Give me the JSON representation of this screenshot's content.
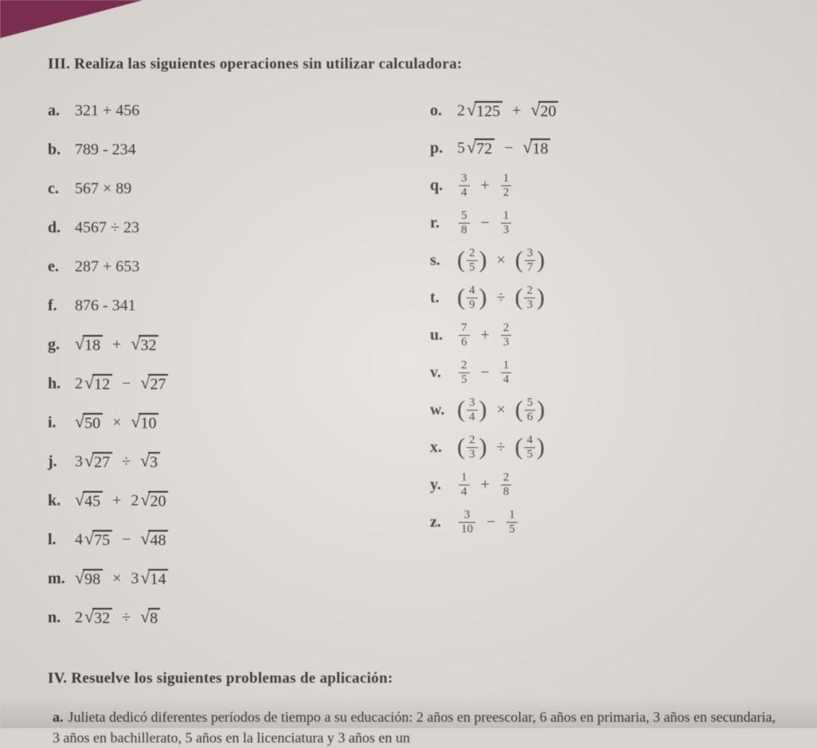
{
  "colors": {
    "background": "#d8d4d1",
    "page": "#e4e0dc",
    "text": "#3a3632",
    "corner": "#7a2d4f"
  },
  "section3": {
    "instruction": "III. Realiza las siguientes operaciones sin utilizar calculadora:"
  },
  "leftColumn": [
    {
      "label": "a.",
      "type": "plain",
      "text": "321 + 456"
    },
    {
      "label": "b.",
      "type": "plain",
      "text": "789 - 234"
    },
    {
      "label": "c.",
      "type": "plain",
      "text": "567 × 89"
    },
    {
      "label": "d.",
      "type": "plain",
      "text": "4567 ÷ 23"
    },
    {
      "label": "e.",
      "type": "plain",
      "text": "287 + 653"
    },
    {
      "label": "f.",
      "type": "plain",
      "text": "876 - 341"
    },
    {
      "label": "g.",
      "type": "sqrt_op_sqrt",
      "coef1": "",
      "rad1": "18",
      "op": "+",
      "coef2": "",
      "rad2": "32"
    },
    {
      "label": "h.",
      "type": "sqrt_op_sqrt",
      "coef1": "2",
      "rad1": "12",
      "op": "−",
      "coef2": "",
      "rad2": "27"
    },
    {
      "label": "i.",
      "type": "sqrt_op_sqrt",
      "coef1": "",
      "rad1": "50",
      "op": "×",
      "coef2": "",
      "rad2": "10"
    },
    {
      "label": "j.",
      "type": "sqrt_op_sqrt",
      "coef1": "3",
      "rad1": "27",
      "op": "÷",
      "coef2": "",
      "rad2": "3"
    },
    {
      "label": "k.",
      "type": "sqrt_op_sqrt",
      "coef1": "",
      "rad1": "45",
      "op": "+",
      "coef2": "2",
      "rad2": "20"
    },
    {
      "label": "l.",
      "type": "sqrt_op_sqrt",
      "coef1": "4",
      "rad1": "75",
      "op": "−",
      "coef2": "",
      "rad2": "48"
    },
    {
      "label": "m.",
      "type": "sqrt_op_sqrt",
      "coef1": "",
      "rad1": "98",
      "op": "×",
      "coef2": "3",
      "rad2": "14"
    },
    {
      "label": "n.",
      "type": "sqrt_op_sqrt",
      "coef1": "2",
      "rad1": "32",
      "op": "÷",
      "coef2": "",
      "rad2": "8"
    }
  ],
  "rightColumn": [
    {
      "label": "o.",
      "type": "sqrt_op_sqrt",
      "coef1": "2",
      "rad1": "125",
      "op": "+",
      "coef2": "",
      "rad2": "20"
    },
    {
      "label": "p.",
      "type": "sqrt_op_sqrt",
      "coef1": "5",
      "rad1": "72",
      "op": "−",
      "coef2": "",
      "rad2": "18"
    },
    {
      "label": "q.",
      "type": "frac_op_frac",
      "n1": "3",
      "d1": "4",
      "op": "+",
      "n2": "1",
      "d2": "2"
    },
    {
      "label": "r.",
      "type": "frac_op_frac",
      "n1": "5",
      "d1": "8",
      "op": "−",
      "n2": "1",
      "d2": "3"
    },
    {
      "label": "s.",
      "type": "pfrac_op_pfrac",
      "n1": "2",
      "d1": "5",
      "op": "×",
      "n2": "3",
      "d2": "7"
    },
    {
      "label": "t.",
      "type": "pfrac_op_pfrac",
      "n1": "4",
      "d1": "9",
      "op": "÷",
      "n2": "2",
      "d2": "3"
    },
    {
      "label": "u.",
      "type": "frac_op_frac",
      "n1": "7",
      "d1": "6",
      "op": "+",
      "n2": "2",
      "d2": "3"
    },
    {
      "label": "v.",
      "type": "frac_op_frac",
      "n1": "2",
      "d1": "5",
      "op": "−",
      "n2": "1",
      "d2": "4"
    },
    {
      "label": "w.",
      "type": "pfrac_op_pfrac",
      "n1": "3",
      "d1": "4",
      "op": "×",
      "n2": "5",
      "d2": "6"
    },
    {
      "label": "x.",
      "type": "pfrac_op_pfrac",
      "n1": "2",
      "d1": "3",
      "op": "÷",
      "n2": "4",
      "d2": "5"
    },
    {
      "label": "y.",
      "type": "frac_op_frac",
      "n1": "1",
      "d1": "4",
      "op": "+",
      "n2": "2",
      "d2": "8"
    },
    {
      "label": "z.",
      "type": "frac_op_frac",
      "n1": "3",
      "d1": "10",
      "op": "−",
      "n2": "1",
      "d2": "5"
    }
  ],
  "section4": {
    "instruction": "IV. Resuelve los siguientes problemas de aplicación:",
    "problemA": {
      "label": "a.",
      "text": "Julieta dedicó diferentes períodos de tiempo a su educación: 2 años en preescolar, 6 años en primaria, 3 años en secundaria, 3 años en bachillerato, 5 años en la licenciatura y 3 años en un"
    }
  }
}
